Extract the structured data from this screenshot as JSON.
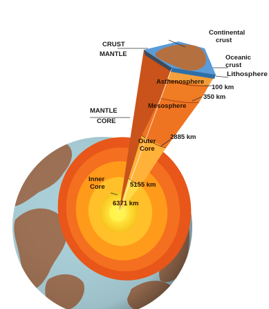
{
  "labels": {
    "crust": "CRUST",
    "mantle_top": "MANTLE",
    "mantle_left": "MANTLE",
    "core": "CORE",
    "continental_crust": "Continental\ncrust",
    "oceanic_crust": "Oceanic\ncrust",
    "lithosphere": "Lithosphere",
    "asthenosphere": "Asthenosphere",
    "mesosphere": "Mesosphere",
    "outer_core": "Outer\nCore",
    "inner_core": "Inner\nCore",
    "d100": "100 km",
    "d350": "350 km",
    "d2885": "2885 km",
    "d5155": "5155 km",
    "d6371": "6371 km"
  },
  "colors": {
    "ocean": "#a9cfd8",
    "land": "#9c6f52",
    "inner_core": "#ffe33a",
    "outer_core": "#ff9a1a",
    "mantle": "#e8561a",
    "crust_land": "#b5703f",
    "crust_ocean": "#5a9bd8"
  }
}
